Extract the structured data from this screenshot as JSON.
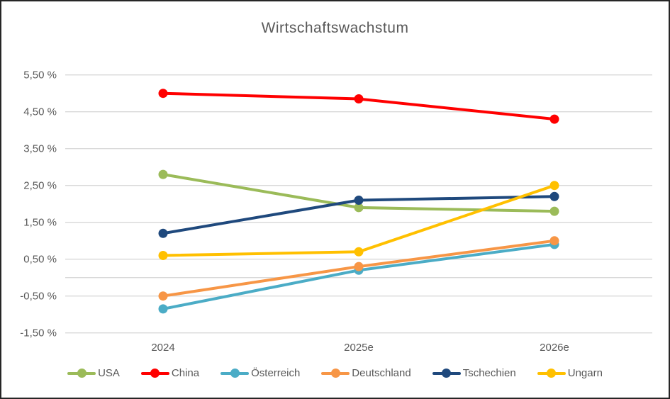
{
  "window": {
    "background": "#FFFFFF",
    "border_color": "#262626",
    "text_color": "#595959"
  },
  "chart_data": {
    "type": "line",
    "title": "Wirtschaftswachstum",
    "categories": [
      "2024",
      "2025e",
      "2026e"
    ],
    "series": [
      {
        "name": "USA",
        "color": "#9BBB59",
        "values": [
          2.8,
          1.9,
          1.8
        ]
      },
      {
        "name": "China",
        "color": "#FF0000",
        "values": [
          5.0,
          4.85,
          4.3
        ]
      },
      {
        "name": "Österreich",
        "color": "#4BACC6",
        "values": [
          -0.85,
          0.2,
          0.9
        ]
      },
      {
        "name": "Deutschland",
        "color": "#F79646",
        "values": [
          -0.5,
          0.3,
          1.0
        ]
      },
      {
        "name": "Tschechien",
        "color": "#1F497D",
        "values": [
          1.2,
          2.1,
          2.2
        ]
      },
      {
        "name": "Ungarn",
        "color": "#FFC000",
        "values": [
          0.6,
          0.7,
          2.5
        ]
      }
    ],
    "y_axis": {
      "min": -1.5,
      "max": 5.5,
      "major_unit": 1.0,
      "tick_labels": [
        "5,50 %",
        "4,50 %",
        "3,50 %",
        "2,50 %",
        "1,50 %",
        "0,50 %",
        "-0,50 %",
        "-1,50 %"
      ],
      "zero_axis_line": true
    },
    "x_axis": {
      "labels": [
        "2024",
        "2025e",
        "2026e"
      ]
    },
    "gridlines": {
      "show": true,
      "color": "#D9D9D9"
    },
    "legend": {
      "position": "bottom",
      "entries": [
        "USA",
        "China",
        "Österreich",
        "Deutschland",
        "Tschechien",
        "Ungarn"
      ]
    },
    "style": {
      "line_width": 4,
      "marker_radius": 6.5,
      "tick_font_size": 15,
      "title_font_size": 21
    }
  }
}
